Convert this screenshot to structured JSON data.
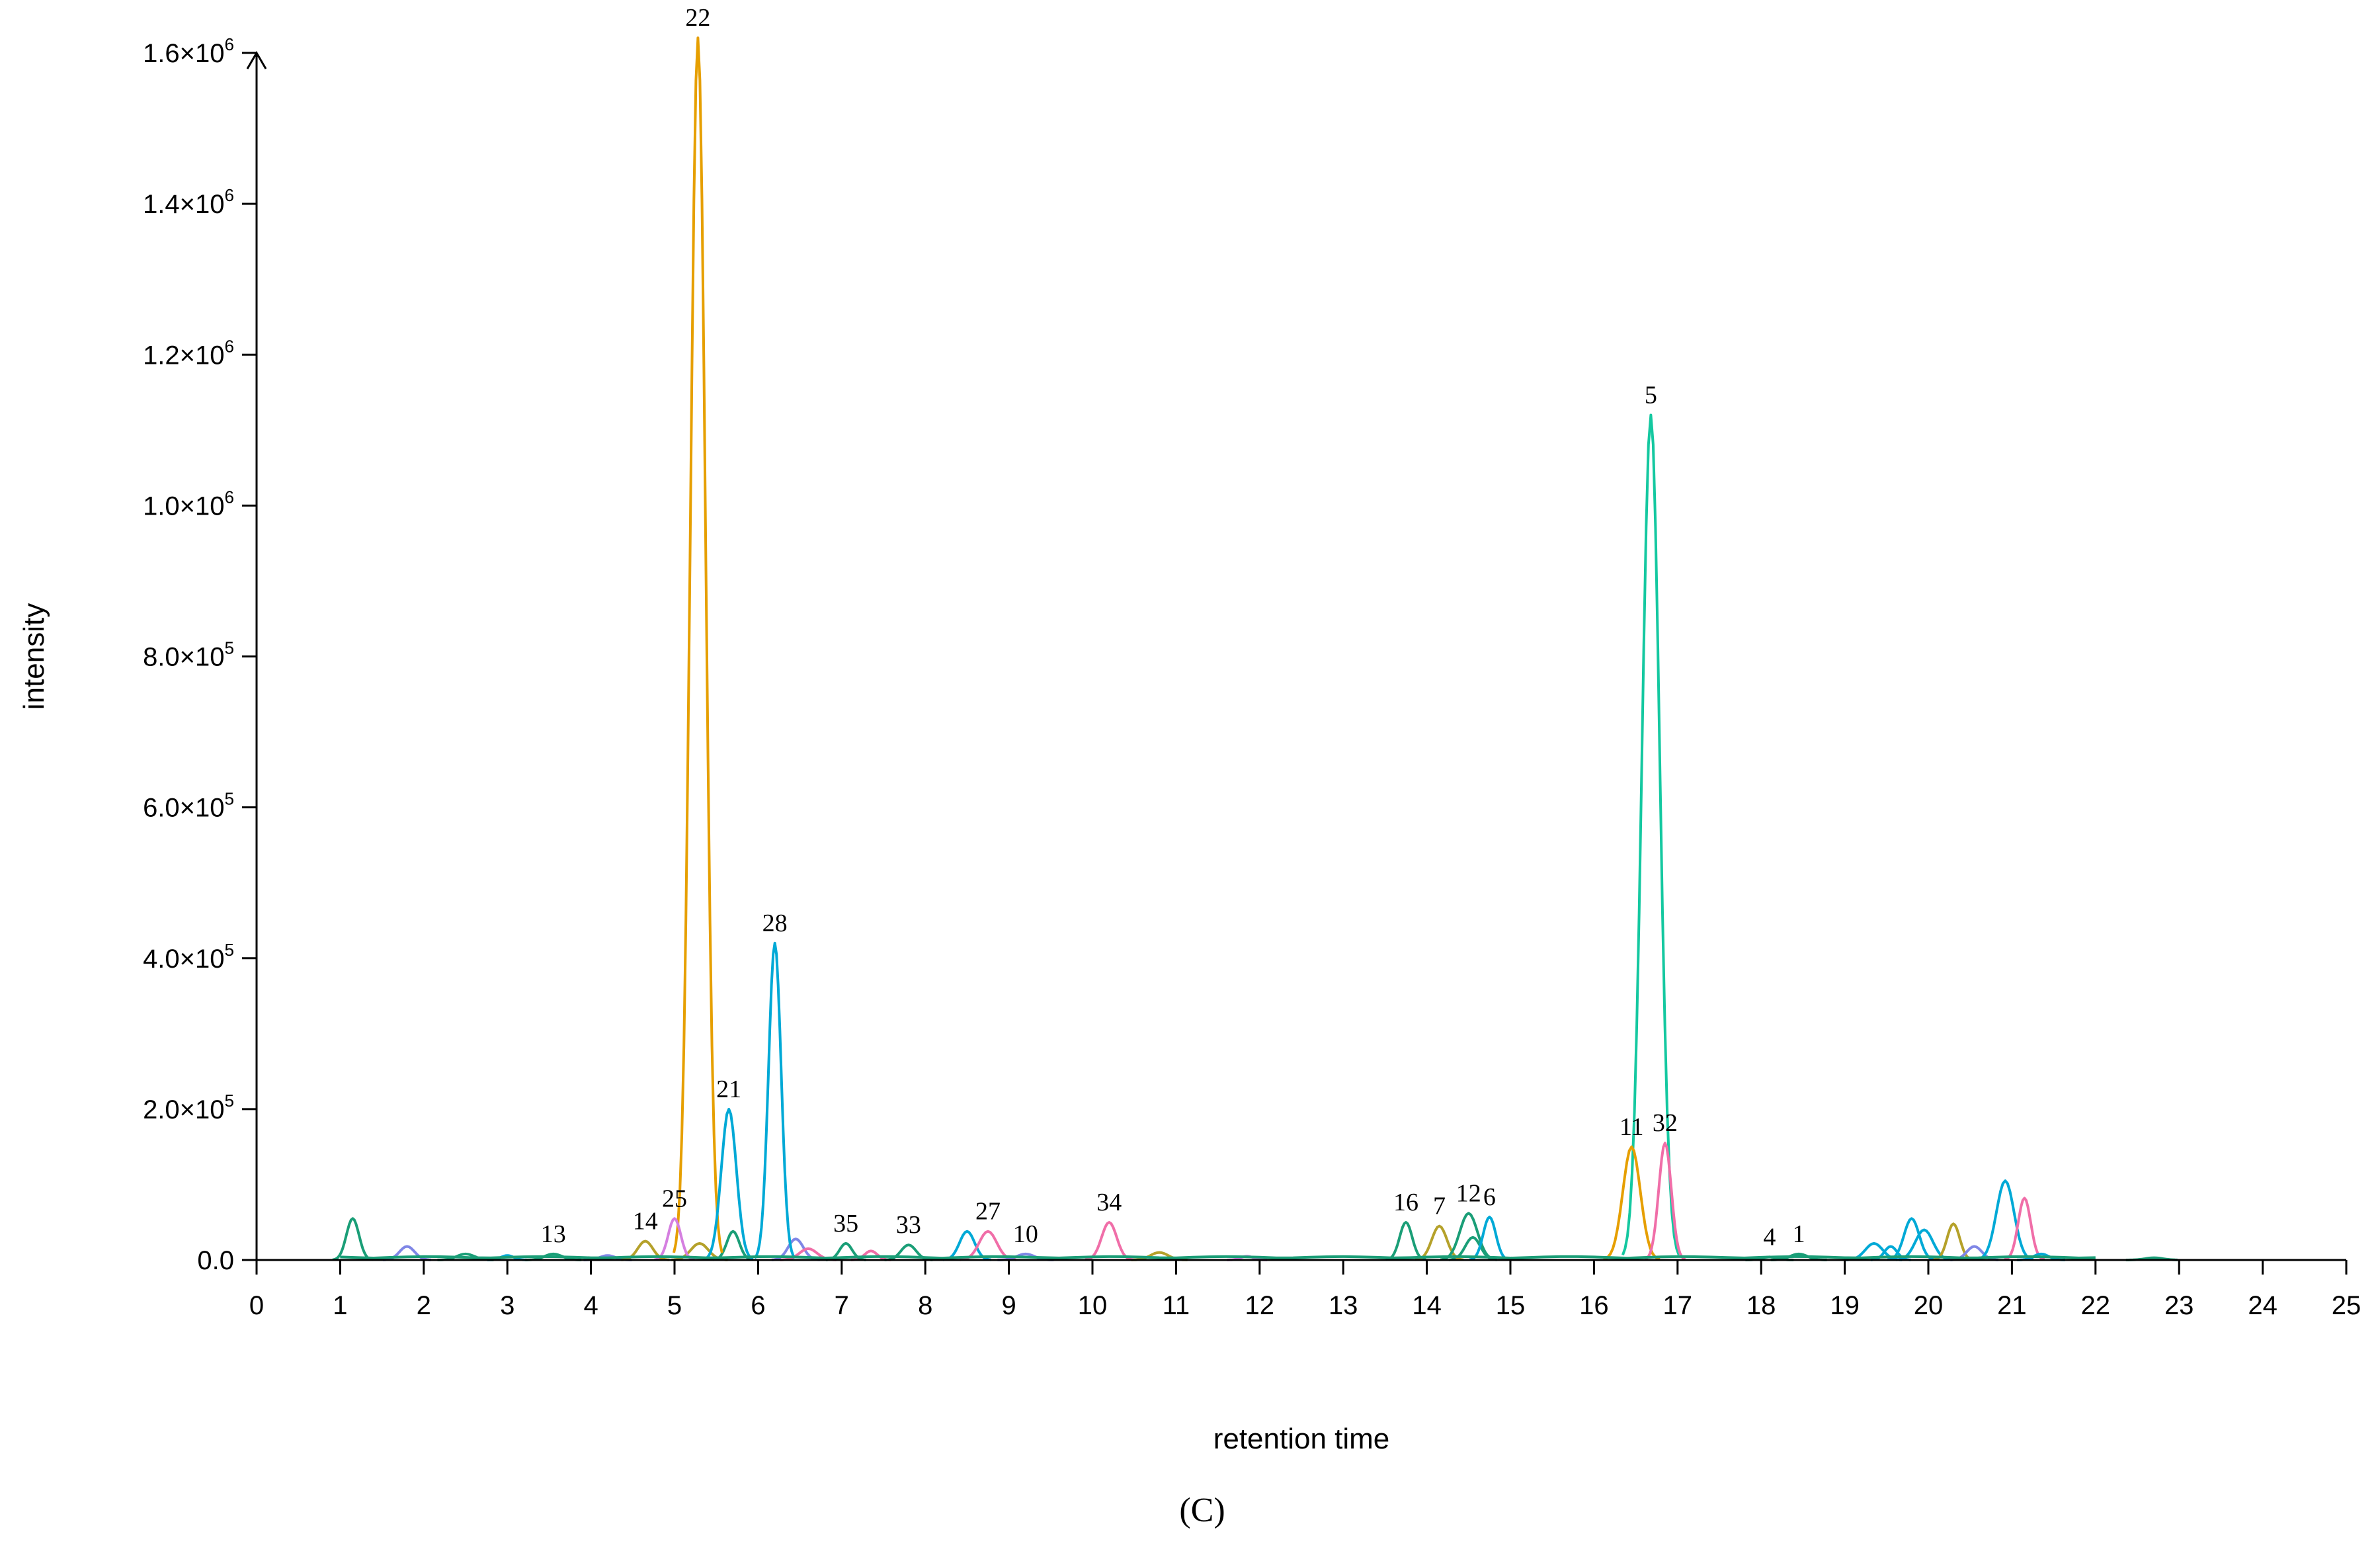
{
  "chart_data": {
    "type": "line",
    "xlabel": "retention time",
    "ylabel": "intensity",
    "caption": "(C)",
    "xlim": [
      0,
      25
    ],
    "ylim": [
      0,
      1600000
    ],
    "x_ticks": [
      0,
      1,
      2,
      3,
      4,
      5,
      6,
      7,
      8,
      9,
      10,
      11,
      12,
      13,
      14,
      15,
      16,
      17,
      18,
      19,
      20,
      21,
      22,
      23,
      24,
      25
    ],
    "y_ticks": [
      {
        "value": 0,
        "mantissa": "0.0",
        "exponent": ""
      },
      {
        "value": 200000,
        "mantissa": "2.0×10",
        "exponent": "5"
      },
      {
        "value": 400000,
        "mantissa": "4.0×10",
        "exponent": "5"
      },
      {
        "value": 600000,
        "mantissa": "6.0×10",
        "exponent": "5"
      },
      {
        "value": 800000,
        "mantissa": "8.0×10",
        "exponent": "5"
      },
      {
        "value": 1000000,
        "mantissa": "1.0×10",
        "exponent": "6"
      },
      {
        "value": 1200000,
        "mantissa": "1.2×10",
        "exponent": "6"
      },
      {
        "value": 1400000,
        "mantissa": "1.4×10",
        "exponent": "6"
      },
      {
        "value": 1600000,
        "mantissa": "1.6×10",
        "exponent": "6"
      }
    ],
    "grid": false,
    "legend": "none",
    "palette": {
      "orange": "#e69f00",
      "green": "#1a9e77",
      "teal": "#14c8a0",
      "cyan": "#00a9d6",
      "pink": "#f06ea8",
      "violet": "#d57fe0",
      "olive": "#b5a12a",
      "blue": "#7f86e6"
    },
    "peaks": [
      {
        "label": "22",
        "x": 5.28,
        "y": 1620000,
        "color": "#e69f00"
      },
      {
        "label": "5",
        "x": 16.68,
        "y": 1120000,
        "color": "#14c8a0"
      },
      {
        "label": "28",
        "x": 6.2,
        "y": 420000,
        "color": "#00a9d6"
      },
      {
        "label": "21",
        "x": 5.65,
        "y": 200000,
        "color": "#00a9d6"
      },
      {
        "label": "11",
        "x": 16.45,
        "y": 150000,
        "color": "#e69f00"
      },
      {
        "label": "32",
        "x": 16.85,
        "y": 155000,
        "color": "#f06ea8"
      },
      {
        "label": "34",
        "x": 10.2,
        "y": 50000,
        "color": "#f06ea8"
      },
      {
        "label": "27",
        "x": 8.75,
        "y": 38000,
        "color": "#f06ea8"
      },
      {
        "label": "35",
        "x": 7.05,
        "y": 22000,
        "color": "#1a9e77"
      },
      {
        "label": "33",
        "x": 7.8,
        "y": 20000,
        "color": "#1a9e77"
      },
      {
        "label": "10",
        "x": 9.2,
        "y": 8000,
        "color": "#7f86e6"
      },
      {
        "label": "25",
        "x": 5.0,
        "y": 55000,
        "color": "#d57fe0"
      },
      {
        "label": "14",
        "x": 4.65,
        "y": 25000,
        "color": "#b5a12a"
      },
      {
        "label": "13",
        "x": 3.55,
        "y": 8000,
        "color": "#1a9e77"
      },
      {
        "label": "16",
        "x": 13.75,
        "y": 50000,
        "color": "#1a9e77"
      },
      {
        "label": "7",
        "x": 14.15,
        "y": 45000,
        "color": "#b5a12a"
      },
      {
        "label": "12",
        "x": 14.5,
        "y": 62000,
        "color": "#1a9e77"
      },
      {
        "label": "6",
        "x": 14.75,
        "y": 57000,
        "color": "#00a9d6"
      },
      {
        "label": "4",
        "x": 18.1,
        "y": 4000,
        "color": "#1a9e77"
      },
      {
        "label": "1",
        "x": 18.45,
        "y": 8000,
        "color": "#1a9e77"
      }
    ],
    "minor_peaks": [
      {
        "x": 1.15,
        "y": 55000,
        "color": "#1a9e77"
      },
      {
        "x": 1.8,
        "y": 18000,
        "color": "#7f86e6"
      },
      {
        "x": 2.5,
        "y": 8000,
        "color": "#1a9e77"
      },
      {
        "x": 3.0,
        "y": 6000,
        "color": "#00a9d6"
      },
      {
        "x": 4.2,
        "y": 6000,
        "color": "#7f86e6"
      },
      {
        "x": 5.3,
        "y": 22000,
        "color": "#b5a12a"
      },
      {
        "x": 5.7,
        "y": 38000,
        "color": "#1a9e77"
      },
      {
        "x": 6.45,
        "y": 28000,
        "color": "#7f86e6"
      },
      {
        "x": 6.6,
        "y": 15000,
        "color": "#f06ea8"
      },
      {
        "x": 7.35,
        "y": 12000,
        "color": "#f06ea8"
      },
      {
        "x": 8.5,
        "y": 38000,
        "color": "#00a9d6"
      },
      {
        "x": 10.8,
        "y": 10000,
        "color": "#b5a12a"
      },
      {
        "x": 11.85,
        "y": 5000,
        "color": "#d57fe0"
      },
      {
        "x": 14.55,
        "y": 30000,
        "color": "#1a9e77"
      },
      {
        "x": 19.35,
        "y": 22000,
        "color": "#00a9d6"
      },
      {
        "x": 19.55,
        "y": 18000,
        "color": "#00a9d6"
      },
      {
        "x": 19.8,
        "y": 55000,
        "color": "#00a9d6"
      },
      {
        "x": 19.95,
        "y": 40000,
        "color": "#00a9d6"
      },
      {
        "x": 20.3,
        "y": 48000,
        "color": "#b5a12a"
      },
      {
        "x": 20.55,
        "y": 18000,
        "color": "#7f86e6"
      },
      {
        "x": 20.92,
        "y": 105000,
        "color": "#00a9d6"
      },
      {
        "x": 21.15,
        "y": 82000,
        "color": "#f06ea8"
      },
      {
        "x": 21.35,
        "y": 8000,
        "color": "#00a9d6"
      },
      {
        "x": 22.7,
        "y": 3000,
        "color": "#1a9e77"
      }
    ]
  }
}
